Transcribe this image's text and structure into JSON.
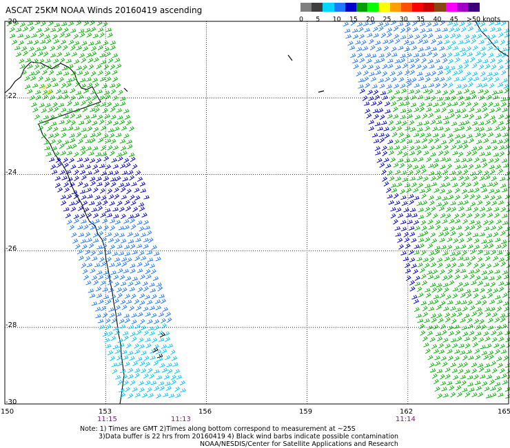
{
  "title": "ASCAT 25KM NOAA Winds 20160419 ascending",
  "legend": {
    "labels": [
      "0",
      "5",
      "10",
      "15",
      "20",
      "25",
      "30",
      "35",
      "40",
      "45",
      ">50 knots"
    ],
    "colors": [
      "#7f7f7f",
      "#3f3f3f",
      "#00d7ff",
      "#1e78ff",
      "#0000c8",
      "#00a000",
      "#00ff00",
      "#ffff00",
      "#ffa000",
      "#ff5000",
      "#ff0000",
      "#c80000",
      "#8b4513",
      "#ff00ff",
      "#a000c8",
      "#3c007a"
    ]
  },
  "axes": {
    "lat_labels": [
      "-20",
      "-22",
      "-24",
      "-26",
      "-28",
      "-30"
    ],
    "lon_labels": [
      "150",
      "153",
      "156",
      "159",
      "162",
      "165"
    ]
  },
  "pass_times": {
    "left_start": "11:15",
    "left_end": "11:13",
    "right": "11:14"
  },
  "notes": {
    "line1": "Note: 1) Times are GMT 2)Times along bottom correspond to measurement at ~25S",
    "line2": "3)Data buffer is 22 hrs from 20160419 4) Black wind barbs indicate possible contamination",
    "line3": "NOAA/NESDIS/Center for Satellite Applications and Research"
  },
  "barb_colors": {
    "light_blue": "#00c8ff",
    "med_blue": "#1e78ff",
    "dark_blue": "#0000c8",
    "green": "#00b400",
    "yellow": "#ffd700",
    "black": "#000000"
  }
}
